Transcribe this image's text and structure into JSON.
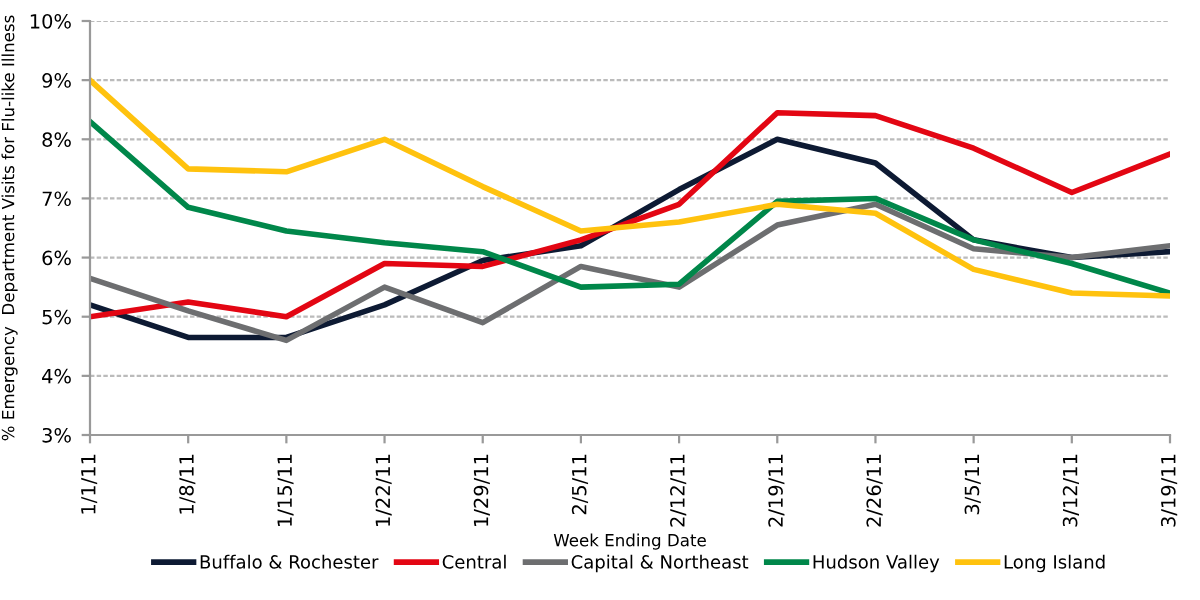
{
  "chart_data": {
    "type": "line",
    "xlabel": "Week Ending Date",
    "ylabel": "% Emergency  Department Visits for Flu-like Illness",
    "categories": [
      "1/1/11",
      "1/8/11",
      "1/15/11",
      "1/22/11",
      "1/29/11",
      "2/5/11",
      "2/12/11",
      "2/19/11",
      "2/26/11",
      "3/5/11",
      "3/12/11",
      "3/19/11"
    ],
    "series": [
      {
        "name": "Buffalo & Rochester",
        "color": "#0d1a33",
        "values": [
          5.2,
          4.65,
          4.65,
          5.2,
          5.95,
          6.2,
          7.15,
          8.0,
          7.6,
          6.3,
          6.0,
          6.1
        ]
      },
      {
        "name": "Central",
        "color": "#e30613",
        "values": [
          5.0,
          5.25,
          5.0,
          5.9,
          5.85,
          6.3,
          6.9,
          8.45,
          8.4,
          7.85,
          7.1,
          7.75
        ]
      },
      {
        "name": "Capital & Northeast",
        "color": "#6d6e70",
        "values": [
          5.65,
          5.1,
          4.6,
          5.5,
          4.9,
          5.85,
          5.5,
          6.55,
          6.9,
          6.15,
          6.0,
          6.2
        ]
      },
      {
        "name": "Hudson Valley",
        "color": "#00874a",
        "values": [
          8.3,
          6.85,
          6.45,
          6.25,
          6.1,
          5.5,
          5.55,
          6.95,
          7.0,
          6.3,
          5.9,
          5.4
        ]
      },
      {
        "name": "Long Island",
        "color": "#ffc20e",
        "values": [
          9.0,
          7.5,
          7.45,
          8.0,
          7.2,
          6.45,
          6.6,
          6.9,
          6.75,
          5.8,
          5.4,
          5.35
        ]
      }
    ],
    "ylim": [
      3,
      10
    ],
    "yticks": [
      {
        "value": 3,
        "label": "3%"
      },
      {
        "value": 4,
        "label": "4%"
      },
      {
        "value": 5,
        "label": "5%"
      },
      {
        "value": 6,
        "label": "6%"
      },
      {
        "value": 7,
        "label": "7%"
      },
      {
        "value": 8,
        "label": "8%"
      },
      {
        "value": 9,
        "label": "9%"
      },
      {
        "value": 10,
        "label": "10%"
      }
    ],
    "grid": "y",
    "legend": "bottom",
    "marker": "none",
    "line_style": "solid"
  }
}
